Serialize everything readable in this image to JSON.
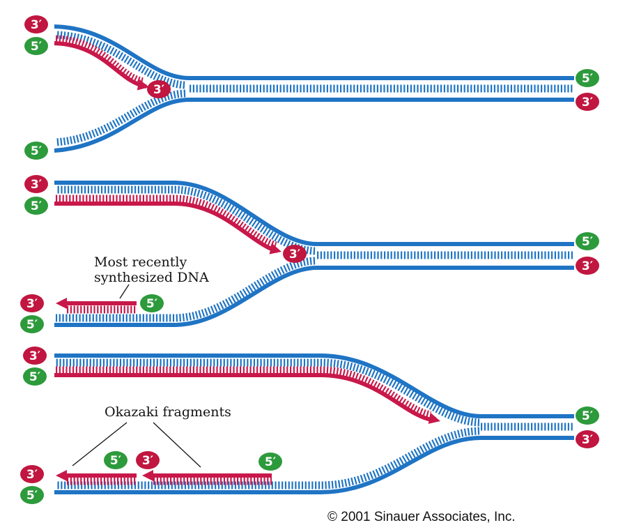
{
  "colors": {
    "template_strand": "#1f74c4",
    "new_strand": "#c8184a",
    "badge_3prime": "#c0163f",
    "badge_5prime": "#2d9a3c"
  },
  "strand_ends": {
    "three_prime": "3′",
    "five_prime": "5′"
  },
  "labels": {
    "recent_dna_line1": "Most recently",
    "recent_dna_line2": "synthesized DNA",
    "okazaki": "Okazaki fragments"
  },
  "copyright": "© 2001 Sinauer Associates, Inc."
}
